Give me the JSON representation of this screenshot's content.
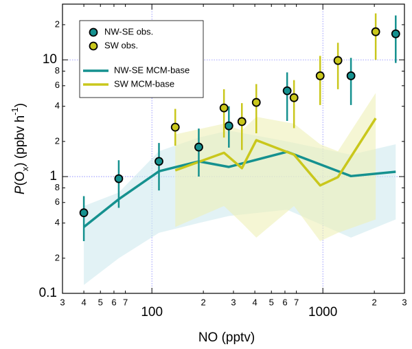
{
  "chart_data": {
    "type": "scatter",
    "log_x": true,
    "log_y": true,
    "grid": true,
    "xlabel": "NO (pptv)",
    "ylabel": [
      "P",
      "(O",
      "x",
      ") (ppbv h",
      "-1",
      ")"
    ],
    "xlim": [
      30,
      3000
    ],
    "ylim": [
      0.1,
      30
    ],
    "xticks": [
      {
        "value": 30,
        "label": "3"
      },
      {
        "value": 40,
        "label": "4"
      },
      {
        "value": 50,
        "label": "5"
      },
      {
        "value": 60,
        "label": "6"
      },
      {
        "value": 70,
        "label": "7"
      },
      100,
      {
        "value": 200,
        "label": "2"
      },
      {
        "value": 300,
        "label": "3"
      },
      {
        "value": 400,
        "label": "4"
      },
      {
        "value": 500,
        "label": "5"
      },
      {
        "value": 600,
        "label": "6"
      },
      {
        "value": 700,
        "label": "7"
      },
      1000,
      {
        "value": 2000,
        "label": "2"
      },
      {
        "value": 3000,
        "label": "3"
      }
    ],
    "yticks": [
      0.1,
      {
        "value": 0.2,
        "label": "2"
      },
      {
        "value": 0.4,
        "label": "4"
      },
      {
        "value": 0.6,
        "label": "6"
      },
      {
        "value": 0.8,
        "label": "8"
      },
      1,
      {
        "value": 2,
        "label": "2"
      },
      {
        "value": 4,
        "label": "4"
      },
      {
        "value": 6,
        "label": "6"
      },
      {
        "value": 8,
        "label": "8"
      },
      10,
      {
        "value": 20,
        "label": "2"
      }
    ],
    "legend": "upper left",
    "series": [
      {
        "name": "NW-SE obs.",
        "kind": "points",
        "color": "#15918f",
        "x": [
          40,
          64,
          110,
          188,
          282,
          618,
          1460,
          2667
        ],
        "values": [
          0.49,
          0.96,
          1.35,
          1.79,
          2.72,
          5.43,
          7.3,
          16.7
        ],
        "lower": [
          0.28,
          0.54,
          0.76,
          1.0,
          1.77,
          3.0,
          4.1,
          9.4
        ],
        "upper": [
          0.68,
          1.38,
          1.94,
          2.58,
          4.0,
          7.8,
          10.4,
          24
        ]
      },
      {
        "name": "SW obs.",
        "kind": "points",
        "color": "#c9c71c",
        "x": [
          137,
          264,
          336,
          408,
          678,
          964,
          1225,
          2037
        ],
        "values": [
          2.65,
          3.87,
          2.96,
          4.32,
          4.74,
          7.3,
          9.87,
          17.4
        ],
        "lower": [
          1.84,
          2.16,
          1.69,
          2.35,
          2.6,
          4.1,
          5.6,
          10
        ],
        "upper": [
          3.8,
          5.6,
          4.26,
          6.2,
          6.7,
          10.8,
          14,
          25
        ]
      },
      {
        "name": "NW-SE MCM-base",
        "kind": "line",
        "color": "#15918f",
        "band_color": "#cfeaee",
        "x": [
          40,
          64,
          110,
          188,
          282,
          618,
          1460,
          2667
        ],
        "values": [
          0.37,
          0.64,
          1.11,
          1.35,
          1.21,
          1.63,
          1.01,
          1.1
        ],
        "lower": [
          0.118,
          0.2,
          0.33,
          0.4,
          0.46,
          0.52,
          0.3,
          0.43
        ],
        "upper": [
          0.56,
          0.73,
          1.65,
          2.16,
          2.48,
          2.0,
          1.54,
          1.89
        ]
      },
      {
        "name": "SW MCM-base",
        "kind": "line",
        "color": "#c9c71c",
        "band_color": "#eef0b8",
        "x": [
          137,
          264,
          336,
          408,
          678,
          964,
          1225,
          2037
        ],
        "values": [
          1.13,
          1.6,
          1.18,
          2.05,
          1.54,
          0.84,
          0.99,
          3.16
        ],
        "lower": [
          0.37,
          0.56,
          0.4,
          0.3,
          0.56,
          0.28,
          0.33,
          0.43
        ],
        "upper": [
          2.3,
          2.84,
          2.48,
          3.25,
          2.84,
          1.89,
          1.65,
          5.2
        ]
      }
    ]
  }
}
